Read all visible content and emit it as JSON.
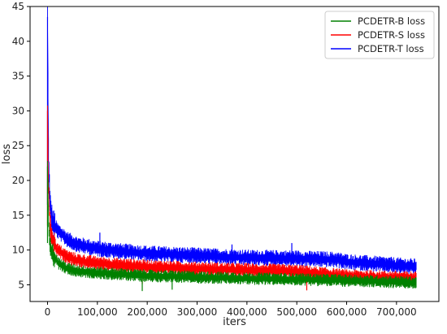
{
  "chart_data": {
    "type": "line",
    "xlabel": "iters",
    "ylabel": "loss",
    "xlim": [
      -35000,
      785000
    ],
    "ylim": [
      2.6,
      45
    ],
    "x_ticks": [
      0,
      100000,
      200000,
      300000,
      400000,
      500000,
      600000,
      700000
    ],
    "x_tick_labels": [
      "0",
      "100,000",
      "200,000",
      "300,000",
      "400,000",
      "500,000",
      "600,000",
      "700,000"
    ],
    "y_ticks": [
      5,
      10,
      15,
      20,
      25,
      30,
      35,
      40,
      45
    ],
    "y_tick_labels": [
      "5",
      "10",
      "15",
      "20",
      "25",
      "30",
      "35",
      "40",
      "45"
    ],
    "grid": false,
    "legend_position": "top-right",
    "series": [
      {
        "name": "PCDETR-T loss",
        "color": "#0000ff",
        "x": [
          0,
          2000,
          5000,
          10000,
          20000,
          40000,
          60000,
          100000,
          150000,
          200000,
          300000,
          400000,
          500000,
          580000,
          600000,
          700000,
          740000
        ],
        "y": [
          43.5,
          24,
          16.5,
          14,
          12.8,
          11.5,
          10.8,
          10.2,
          9.8,
          9.5,
          9.2,
          8.9,
          8.8,
          8.6,
          8.3,
          7.8,
          7.6
        ],
        "spread": 0.9,
        "spikes": [
          {
            "x": 105000,
            "y": 12.5
          },
          {
            "x": 490000,
            "y": 11
          },
          {
            "x": 370000,
            "y": 10.8
          }
        ]
      },
      {
        "name": "PCDETR-S loss",
        "color": "#ff0000",
        "x": [
          0,
          2000,
          5000,
          10000,
          20000,
          40000,
          60000,
          100000,
          150000,
          200000,
          300000,
          400000,
          500000,
          600000,
          700000,
          740000
        ],
        "y": [
          30,
          19,
          13.5,
          11.5,
          10,
          9,
          8.5,
          8.1,
          7.8,
          7.6,
          7.3,
          7.1,
          6.9,
          6.2,
          6.0,
          5.9
        ],
        "spread": 0.8,
        "spikes": [
          {
            "x": 190000,
            "y": 5.1
          },
          {
            "x": 520000,
            "y": 4.2
          }
        ]
      },
      {
        "name": "PCDETR-B loss",
        "color": "#008000",
        "x": [
          0,
          2000,
          5000,
          10000,
          20000,
          40000,
          60000,
          100000,
          150000,
          200000,
          300000,
          400000,
          500000,
          600000,
          700000,
          740000
        ],
        "y": [
          22,
          14.5,
          11,
          9.5,
          8.2,
          7.3,
          7.0,
          6.7,
          6.5,
          6.3,
          6.1,
          5.9,
          5.8,
          5.6,
          5.4,
          5.3
        ],
        "spread": 0.7,
        "spikes": [
          {
            "x": 190000,
            "y": 4.1
          },
          {
            "x": 250000,
            "y": 4.3
          }
        ]
      }
    ],
    "legend_order": [
      "PCDETR-B loss",
      "PCDETR-S loss",
      "PCDETR-T loss"
    ]
  }
}
